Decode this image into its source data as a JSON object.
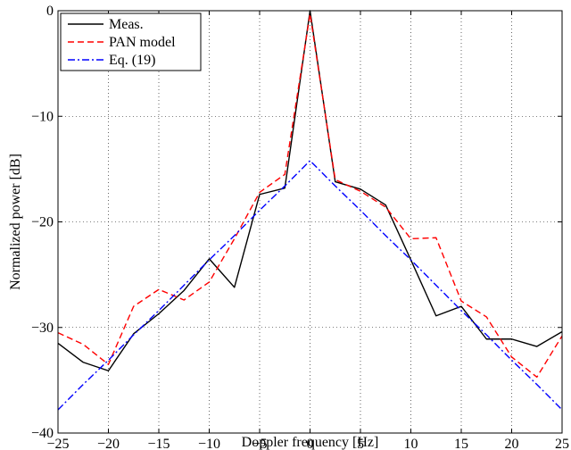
{
  "chart_data": {
    "type": "line",
    "title": "",
    "xlabel": "Doppler frequency [Hz]",
    "ylabel": "Normalized power [dB]",
    "xlim": [
      -25,
      25
    ],
    "ylim": [
      -40,
      0
    ],
    "xticks": [
      "−25",
      "−20",
      "−15",
      "−10",
      "−5",
      "0",
      "5",
      "10",
      "15",
      "20",
      "25"
    ],
    "yticks": [
      "0",
      "−10",
      "−20",
      "−30",
      "−40"
    ],
    "grid": true,
    "legend_position": "top-left",
    "series": [
      {
        "name": "Meas.",
        "color": "#000000",
        "style": "solid",
        "x": [
          -25,
          -22.5,
          -20,
          -17.5,
          -15,
          -12.5,
          -10,
          -7.5,
          -5,
          -2.5,
          0,
          2.5,
          5,
          7.5,
          10,
          12.5,
          15,
          17.5,
          20,
          22.5,
          25
        ],
        "y": [
          -31.5,
          -33.3,
          -34.1,
          -30.6,
          -28.7,
          -26.5,
          -23.5,
          -26.2,
          -17.4,
          -16.8,
          0,
          -16.2,
          -16.9,
          -18.4,
          -23.6,
          -28.9,
          -28.0,
          -31.1,
          -31.1,
          -31.8,
          -30.4
        ]
      },
      {
        "name": "PAN model",
        "color": "#ff0000",
        "style": "dashed",
        "x": [
          -25,
          -22.5,
          -20,
          -17.5,
          -15,
          -12.5,
          -10,
          -7.5,
          -5,
          -2.5,
          0,
          2.5,
          5,
          7.5,
          10,
          12.5,
          15,
          17.5,
          20,
          22.5,
          25
        ],
        "y": [
          -30.5,
          -31.6,
          -33.5,
          -28.0,
          -26.4,
          -27.4,
          -25.7,
          -21.6,
          -17.2,
          -15.5,
          -0.3,
          -16.0,
          -17.1,
          -18.6,
          -21.6,
          -21.5,
          -27.5,
          -29.0,
          -32.8,
          -34.7,
          -30.8
        ]
      },
      {
        "name": "Eq. (19)",
        "color": "#0000ff",
        "style": "dashdot",
        "x": [
          -25,
          -22.5,
          -20,
          -17.5,
          -15,
          -12.5,
          -10,
          -7.5,
          -5,
          -2.5,
          0,
          2.5,
          5,
          7.5,
          10,
          12.5,
          15,
          17.5,
          20,
          22.5,
          25
        ],
        "y": [
          -37.8,
          -35.4,
          -33.1,
          -30.7,
          -28.4,
          -26.0,
          -23.6,
          -21.3,
          -18.9,
          -16.6,
          -14.2,
          -16.6,
          -18.9,
          -21.3,
          -23.6,
          -26.0,
          -28.4,
          -30.7,
          -33.1,
          -35.4,
          -37.8
        ]
      }
    ]
  }
}
